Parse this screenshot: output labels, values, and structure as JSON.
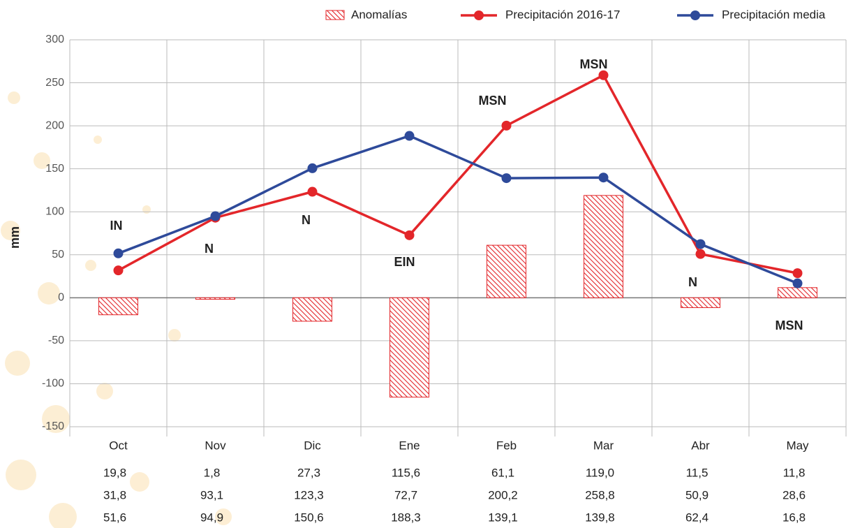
{
  "chart_data": {
    "type": "bar",
    "ylabel": "mm",
    "categories": [
      "Oct",
      "Nov",
      "Dic",
      "Ene",
      "Feb",
      "Mar",
      "Abr",
      "May"
    ],
    "series": [
      {
        "name": "Anomalías",
        "type": "bar",
        "color": "#e3262a",
        "values": [
          -19.8,
          -1.8,
          -27.3,
          -115.6,
          61.1,
          119.0,
          -11.5,
          11.8
        ],
        "value_labels": [
          "19,8",
          "1,8",
          "27,3",
          "115,6",
          "61,1",
          "119,0",
          "11,5",
          "11,8"
        ]
      },
      {
        "name": "Precipitación 2016-17",
        "type": "line",
        "color": "#e3262a",
        "values": [
          31.8,
          93.1,
          123.3,
          72.7,
          200.2,
          258.8,
          50.9,
          28.6
        ],
        "value_labels": [
          "31,8",
          "93,1",
          "123,3",
          "72,7",
          "200,2",
          "258,8",
          "50,9",
          "28,6"
        ]
      },
      {
        "name": "Precipitación media",
        "type": "line",
        "color": "#2e4a9a",
        "values": [
          51.6,
          94.9,
          150.6,
          188.3,
          139.1,
          139.8,
          62.4,
          16.8
        ],
        "value_labels": [
          "51,6",
          "94,9",
          "150,6",
          "188,3",
          "139,1",
          "139,8",
          "62,4",
          "16,8"
        ]
      }
    ],
    "annotations": [
      "IN",
      "N",
      "N",
      "EIN",
      "MSN",
      "MSN",
      "N",
      "MSN"
    ],
    "ylim": [
      -150,
      300
    ],
    "yticks": [
      -150,
      -100,
      -50,
      0,
      50,
      100,
      150,
      200,
      250,
      300
    ],
    "grid": true
  }
}
